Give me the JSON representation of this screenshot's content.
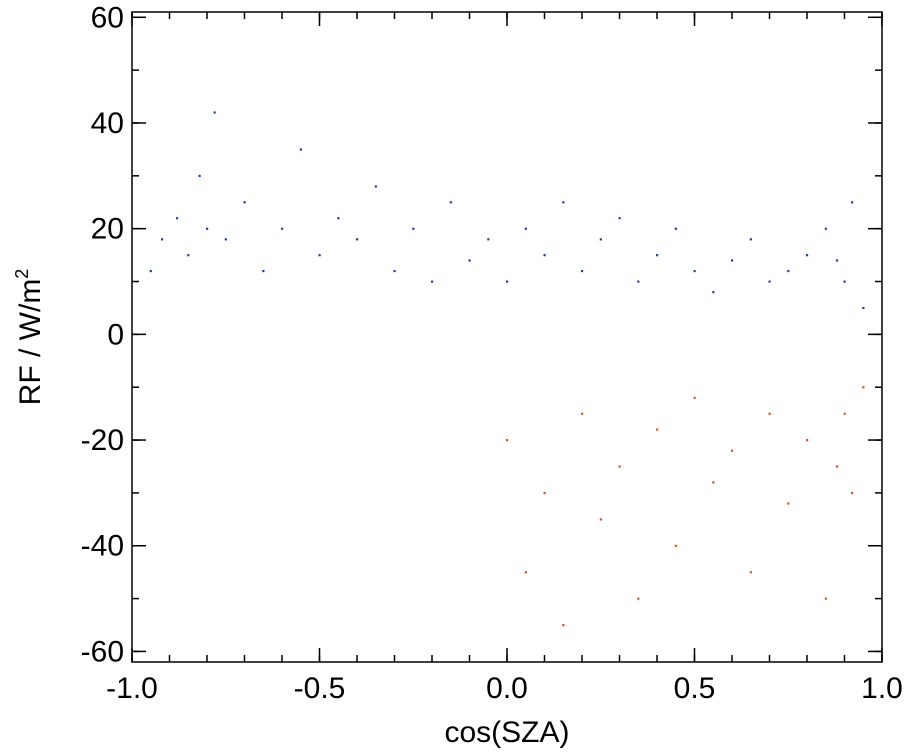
{
  "chart_data": {
    "type": "scatter",
    "xlabel": "cos(SZA)",
    "ylabel": "RF / W/m",
    "ylabel_superscript": "2",
    "xlim": [
      -1.0,
      1.0
    ],
    "ylim": [
      -62,
      61
    ],
    "x_ticks": [
      -1.0,
      -0.5,
      0.0,
      0.5,
      1.0
    ],
    "x_tick_labels": [
      "-1.0",
      "-0.5",
      "0.0",
      "0.5",
      "1.0"
    ],
    "y_ticks": [
      -60,
      -40,
      -20,
      0,
      20,
      40,
      60
    ],
    "y_tick_labels": [
      "-60",
      "-40",
      "-20",
      "0",
      "20",
      "40",
      "60"
    ],
    "grid": false,
    "legend": "none",
    "series": [
      {
        "color": "#1f3fa8",
        "values": [
          [
            -0.95,
            12
          ],
          [
            -0.92,
            18
          ],
          [
            -0.88,
            22
          ],
          [
            -0.85,
            15
          ],
          [
            -0.82,
            30
          ],
          [
            -0.8,
            20
          ],
          [
            -0.78,
            42
          ],
          [
            -0.75,
            18
          ],
          [
            -0.7,
            25
          ],
          [
            -0.65,
            12
          ],
          [
            -0.6,
            20
          ],
          [
            -0.55,
            35
          ],
          [
            -0.5,
            15
          ],
          [
            -0.45,
            22
          ],
          [
            -0.4,
            18
          ],
          [
            -0.35,
            28
          ],
          [
            -0.3,
            12
          ],
          [
            -0.25,
            20
          ],
          [
            -0.2,
            10
          ],
          [
            -0.15,
            25
          ],
          [
            -0.1,
            14
          ],
          [
            -0.05,
            18
          ],
          [
            0.0,
            10
          ],
          [
            0.05,
            20
          ],
          [
            0.1,
            15
          ],
          [
            0.15,
            25
          ],
          [
            0.2,
            12
          ],
          [
            0.25,
            18
          ],
          [
            0.3,
            22
          ],
          [
            0.35,
            10
          ],
          [
            0.4,
            15
          ],
          [
            0.45,
            20
          ],
          [
            0.5,
            12
          ],
          [
            0.55,
            8
          ],
          [
            0.6,
            14
          ],
          [
            0.65,
            18
          ],
          [
            0.7,
            10
          ],
          [
            0.75,
            12
          ],
          [
            0.8,
            15
          ],
          [
            0.85,
            20
          ],
          [
            0.88,
            14
          ],
          [
            0.9,
            10
          ],
          [
            0.92,
            25
          ],
          [
            0.95,
            5
          ]
        ]
      },
      {
        "color": "#e0521a",
        "values": [
          [
            0.0,
            -20
          ],
          [
            0.05,
            -45
          ],
          [
            0.1,
            -30
          ],
          [
            0.15,
            -55
          ],
          [
            0.2,
            -15
          ],
          [
            0.25,
            -35
          ],
          [
            0.3,
            -25
          ],
          [
            0.35,
            -50
          ],
          [
            0.4,
            -18
          ],
          [
            0.45,
            -40
          ],
          [
            0.5,
            -12
          ],
          [
            0.55,
            -28
          ],
          [
            0.6,
            -22
          ],
          [
            0.65,
            -45
          ],
          [
            0.7,
            -15
          ],
          [
            0.75,
            -32
          ],
          [
            0.8,
            -20
          ],
          [
            0.85,
            -50
          ],
          [
            0.88,
            -25
          ],
          [
            0.9,
            -15
          ],
          [
            0.92,
            -30
          ],
          [
            0.95,
            -10
          ]
        ]
      }
    ]
  }
}
